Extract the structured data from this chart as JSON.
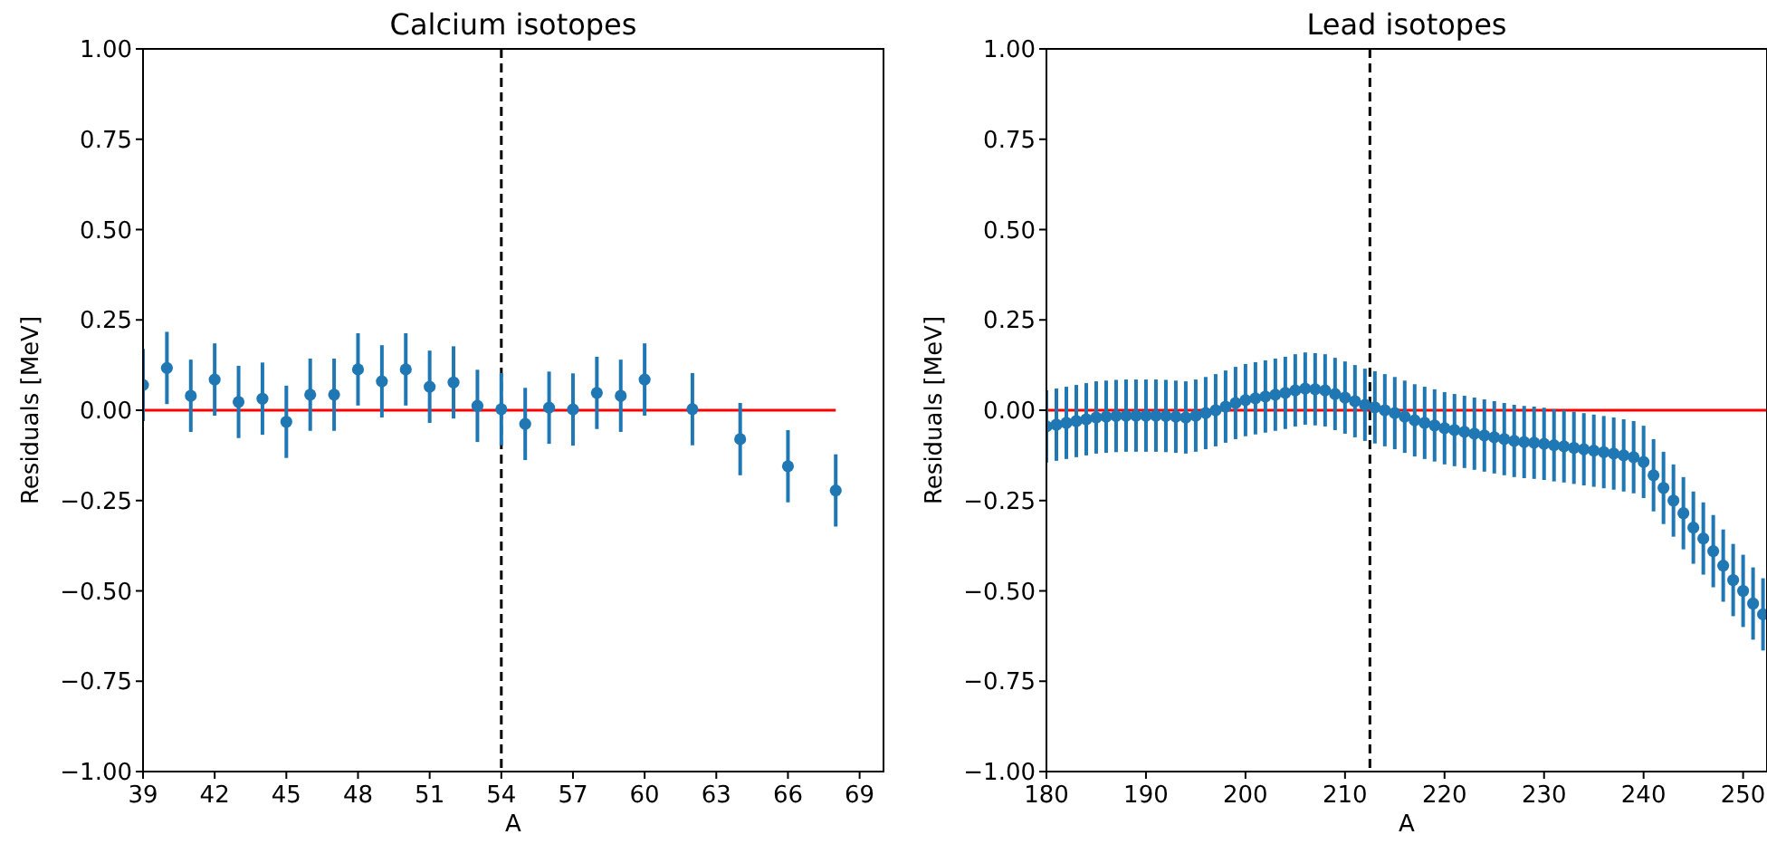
{
  "chart_data": [
    {
      "type": "scatter",
      "title": "Calcium isotopes",
      "xlabel": "A",
      "ylabel": "Residuals [MeV]",
      "xlim": [
        39,
        70
      ],
      "xticks": [
        39,
        42,
        45,
        48,
        51,
        54,
        57,
        60,
        63,
        66,
        69
      ],
      "ylim": [
        -1,
        1
      ],
      "yticks": [
        {
          "value": -1,
          "label": "−1.00"
        },
        {
          "value": -0.75,
          "label": "−0.75"
        },
        {
          "value": -0.5,
          "label": "−0.50"
        },
        {
          "value": -0.25,
          "label": "−0.25"
        },
        {
          "value": 0,
          "label": "0.00"
        },
        {
          "value": 0.25,
          "label": "0.25"
        },
        {
          "value": 0.5,
          "label": "0.50"
        },
        {
          "value": 0.75,
          "label": "0.75"
        },
        {
          "value": 1,
          "label": "1.00"
        }
      ],
      "ref_lines": [
        {
          "axis": "x",
          "value": 54,
          "color": "#000000",
          "line_style": "dashed"
        }
      ],
      "series": [
        {
          "type": "line",
          "color": "#ff0000",
          "marker": "none",
          "x": [
            39,
            68
          ],
          "values": [
            0,
            0
          ]
        },
        {
          "color": "#1f77b4",
          "marker": "circle",
          "x": [
            39,
            40,
            41,
            42,
            43,
            44,
            45,
            46,
            47,
            48,
            49,
            50,
            51,
            52,
            53,
            54,
            55,
            56,
            57,
            58,
            59,
            60,
            62,
            64,
            66,
            68
          ],
          "values": [
            0.07,
            0.117,
            0.04,
            0.085,
            0.023,
            0.032,
            -0.032,
            0.043,
            0.043,
            0.113,
            0.08,
            0.113,
            0.065,
            0.077,
            0.012,
            0.003,
            -0.038,
            0.007,
            0.002,
            0.048,
            0.04,
            0.085,
            0.003,
            -0.08,
            -0.155,
            -0.222
          ],
          "errors": [
            0.1,
            0.1,
            0.1,
            0.1,
            0.1,
            0.1,
            0.1,
            0.1,
            0.1,
            0.1,
            0.1,
            0.1,
            0.1,
            0.1,
            0.1,
            0.1,
            0.1,
            0.1,
            0.1,
            0.1,
            0.1,
            0.1,
            0.1,
            0.1,
            0.1,
            0.1
          ]
        }
      ]
    },
    {
      "type": "scatter",
      "title": "Lead isotopes",
      "xlabel": "A",
      "ylabel": "Residuals [MeV]",
      "xlim": [
        180,
        252.4
      ],
      "xticks": [
        180,
        190,
        200,
        210,
        220,
        230,
        240,
        250
      ],
      "ylim": [
        -1,
        1
      ],
      "yticks": [
        {
          "value": -1,
          "label": "−1.00"
        },
        {
          "value": -0.75,
          "label": "−0.75"
        },
        {
          "value": -0.5,
          "label": "−0.50"
        },
        {
          "value": -0.25,
          "label": "−0.25"
        },
        {
          "value": 0,
          "label": "0.00"
        },
        {
          "value": 0.25,
          "label": "0.25"
        },
        {
          "value": 0.5,
          "label": "0.50"
        },
        {
          "value": 0.75,
          "label": "0.75"
        },
        {
          "value": 1,
          "label": "1.00"
        }
      ],
      "ref_lines": [
        {
          "axis": "x",
          "value": 212.5,
          "color": "#000000",
          "line_style": "dashed"
        }
      ],
      "series": [
        {
          "type": "line",
          "color": "#ff0000",
          "marker": "none",
          "x": [
            180,
            252.4
          ],
          "values": [
            0,
            0
          ]
        },
        {
          "color": "#1f77b4",
          "marker": "circle",
          "x": [
            180,
            181,
            182,
            183,
            184,
            185,
            186,
            187,
            188,
            189,
            190,
            191,
            192,
            193,
            194,
            195,
            196,
            197,
            198,
            199,
            200,
            201,
            202,
            203,
            204,
            205,
            206,
            207,
            208,
            209,
            210,
            211,
            212,
            213,
            214,
            215,
            216,
            217,
            218,
            219,
            220,
            221,
            222,
            223,
            224,
            225,
            226,
            227,
            228,
            229,
            230,
            231,
            232,
            233,
            234,
            235,
            236,
            237,
            238,
            239,
            240,
            241,
            242,
            243,
            244,
            245,
            246,
            247,
            248,
            249,
            250,
            251,
            252
          ],
          "values": [
            -0.045,
            -0.04,
            -0.035,
            -0.03,
            -0.025,
            -0.02,
            -0.018,
            -0.016,
            -0.015,
            -0.015,
            -0.015,
            -0.015,
            -0.016,
            -0.018,
            -0.02,
            -0.015,
            -0.008,
            0.0,
            0.01,
            0.02,
            0.028,
            0.033,
            0.038,
            0.043,
            0.048,
            0.055,
            0.06,
            0.058,
            0.055,
            0.045,
            0.035,
            0.025,
            0.015,
            0.008,
            0.0,
            -0.008,
            -0.018,
            -0.028,
            -0.035,
            -0.042,
            -0.05,
            -0.055,
            -0.06,
            -0.065,
            -0.07,
            -0.075,
            -0.08,
            -0.085,
            -0.088,
            -0.09,
            -0.093,
            -0.097,
            -0.1,
            -0.104,
            -0.108,
            -0.112,
            -0.116,
            -0.12,
            -0.125,
            -0.13,
            -0.143,
            -0.18,
            -0.215,
            -0.25,
            -0.285,
            -0.325,
            -0.355,
            -0.39,
            -0.43,
            -0.47,
            -0.5,
            -0.535,
            -0.565
          ],
          "errors": [
            0.1,
            0.1,
            0.1,
            0.1,
            0.1,
            0.1,
            0.1,
            0.1,
            0.1,
            0.1,
            0.1,
            0.1,
            0.1,
            0.1,
            0.1,
            0.1,
            0.1,
            0.1,
            0.1,
            0.1,
            0.1,
            0.1,
            0.1,
            0.1,
            0.1,
            0.1,
            0.1,
            0.1,
            0.1,
            0.1,
            0.1,
            0.1,
            0.1,
            0.1,
            0.1,
            0.1,
            0.1,
            0.1,
            0.1,
            0.1,
            0.1,
            0.1,
            0.1,
            0.1,
            0.1,
            0.1,
            0.1,
            0.1,
            0.1,
            0.1,
            0.1,
            0.1,
            0.1,
            0.1,
            0.1,
            0.1,
            0.1,
            0.1,
            0.1,
            0.1,
            0.1,
            0.1,
            0.1,
            0.1,
            0.1,
            0.1,
            0.1,
            0.1,
            0.1,
            0.1,
            0.1,
            0.1,
            0.1
          ]
        }
      ]
    }
  ]
}
